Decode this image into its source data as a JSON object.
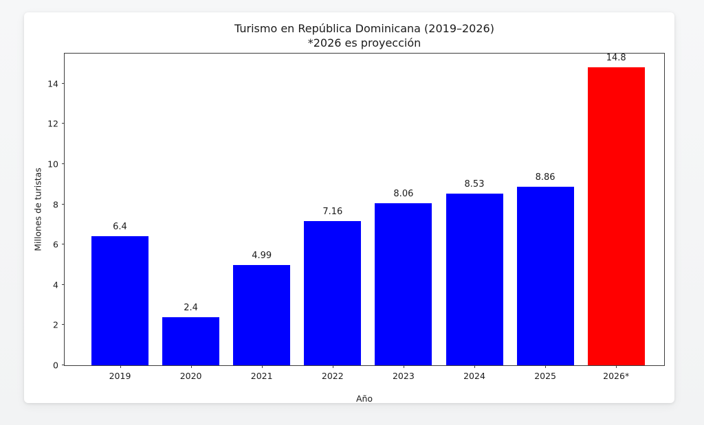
{
  "chart_data": {
    "type": "bar",
    "title": "Turismo en República Dominicana (2019–2026)",
    "subtitle": "*2026 es proyección",
    "categories": [
      "2019",
      "2020",
      "2021",
      "2022",
      "2023",
      "2024",
      "2025",
      "2026*"
    ],
    "values": [
      6.4,
      2.4,
      4.99,
      7.16,
      8.06,
      8.53,
      8.86,
      14.8
    ],
    "value_labels": [
      "6.4",
      "2.4",
      "4.99",
      "7.16",
      "8.06",
      "8.53",
      "8.86",
      "14.8"
    ],
    "bar_colors": [
      "#0000ff",
      "#0000ff",
      "#0000ff",
      "#0000ff",
      "#0000ff",
      "#0000ff",
      "#0000ff",
      "#ff0000"
    ],
    "xlabel": "Año",
    "ylabel": "Millones de turistas",
    "yticks": [
      0,
      2,
      4,
      6,
      8,
      10,
      12,
      14
    ],
    "ylim": [
      0,
      15.56
    ],
    "grid": false,
    "legend": null,
    "colors": {
      "bar_default": "#0000ff",
      "bar_projection": "#ff0000",
      "plot_background": "#ffffff",
      "page_background": "#f5f6f7",
      "spine": "#3c3c3c",
      "text": "#1a1a1a"
    }
  }
}
